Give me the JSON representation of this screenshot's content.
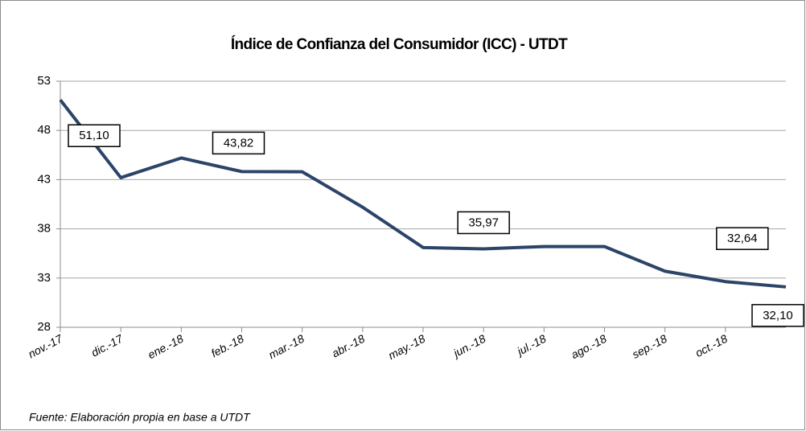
{
  "chart_data": {
    "type": "line",
    "title": "Índice de Confianza del Consumidor (ICC) - UTDT",
    "categories": [
      "nov.-17",
      "dic.-17",
      "ene.-18",
      "feb.-18",
      "mar.-18",
      "abr.-18",
      "may.-18",
      "jun.-18",
      "jul.-18",
      "ago.-18",
      "sep.-18",
      "oct.-18",
      null
    ],
    "values": [
      51.1,
      43.2,
      45.2,
      43.82,
      43.8,
      40.2,
      36.1,
      35.97,
      36.2,
      36.2,
      33.7,
      32.64,
      32.1
    ],
    "value_labels": [
      "51,10",
      null,
      null,
      "43,82",
      null,
      null,
      null,
      "35,97",
      null,
      null,
      null,
      "32,64",
      "32,10"
    ],
    "color": "#2b4468",
    "ylim": [
      28,
      53
    ],
    "yticks": [
      28,
      33,
      38,
      43,
      48,
      53
    ],
    "grid": true,
    "source": "Fuente: Elaboración propia en base a UTDT"
  }
}
